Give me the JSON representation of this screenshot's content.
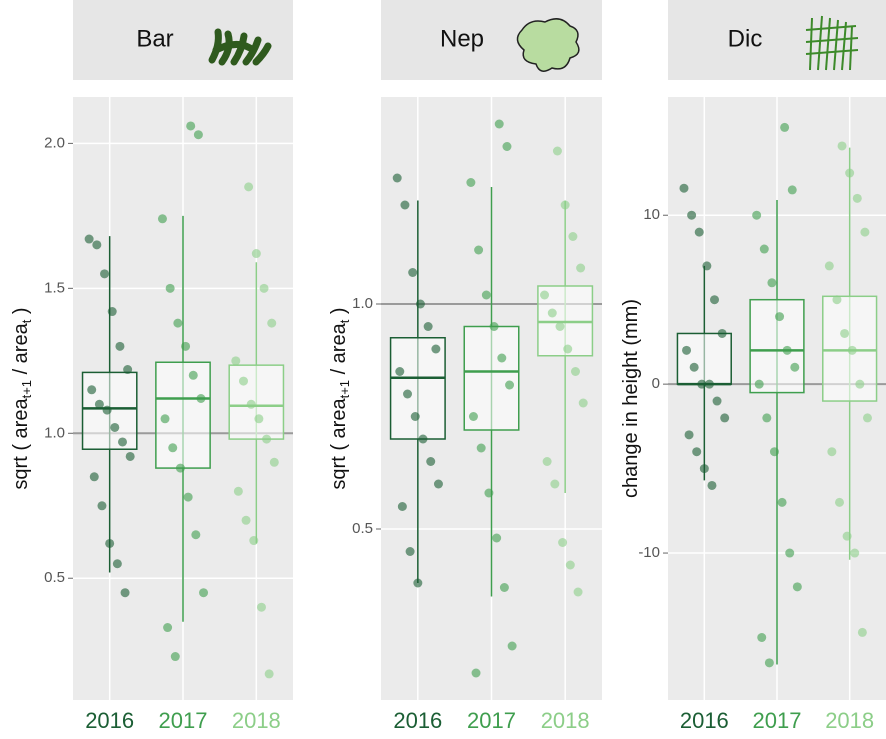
{
  "chart_data": [
    {
      "type": "box",
      "title": "Bar",
      "categories": [
        "2016",
        "2017",
        "2018"
      ],
      "y_label_parts": [
        "sqrt ( area",
        "t+1",
        " / area",
        "t",
        " )"
      ],
      "ylim": [
        0.08,
        2.16
      ],
      "yticks": [
        {
          "value": 0.5,
          "label": "0.5"
        },
        {
          "value": 1,
          "label": "1.0"
        },
        {
          "value": 1.5,
          "label": "1.5"
        },
        {
          "value": 2,
          "label": "2.0"
        }
      ],
      "reference_line": 1,
      "grid": true,
      "boxes": [
        {
          "color": "#1b5e34",
          "min": 0.52,
          "q1": 0.945,
          "median": 1.086,
          "q3": 1.21,
          "max": 1.68,
          "points": [
            1.67,
            1.65,
            1.55,
            1.42,
            1.3,
            1.22,
            1.15,
            1.1,
            1.08,
            1.02,
            0.97,
            0.92,
            0.85,
            0.75,
            0.62,
            0.55,
            0.45
          ]
        },
        {
          "color": "#3f9e4e",
          "min": 0.35,
          "q1": 0.88,
          "median": 1.12,
          "q3": 1.245,
          "max": 1.75,
          "points": [
            2.06,
            2.03,
            1.74,
            1.5,
            1.38,
            1.3,
            1.2,
            1.12,
            1.05,
            0.95,
            0.88,
            0.78,
            0.65,
            0.45,
            0.33,
            0.23
          ]
        },
        {
          "color": "#8cce88",
          "min": 0.62,
          "q1": 0.98,
          "median": 1.095,
          "q3": 1.235,
          "max": 1.59,
          "points": [
            1.85,
            1.62,
            1.5,
            1.38,
            1.25,
            1.18,
            1.1,
            1.05,
            0.98,
            0.9,
            0.8,
            0.7,
            0.63,
            0.4,
            0.17
          ]
        }
      ]
    },
    {
      "type": "box",
      "title": "Nep",
      "categories": [
        "2016",
        "2017",
        "2018"
      ],
      "y_label_parts": [
        "sqrt ( area",
        "t+1",
        " / area",
        "t",
        " )"
      ],
      "ylim": [
        0.12,
        1.46
      ],
      "yticks": [
        {
          "value": 0.5,
          "label": "0.5"
        },
        {
          "value": 1,
          "label": "1.0"
        }
      ],
      "reference_line": 1,
      "grid": true,
      "boxes": [
        {
          "color": "#1b5e34",
          "min": 0.38,
          "q1": 0.7,
          "median": 0.836,
          "q3": 0.925,
          "max": 1.23,
          "points": [
            1.28,
            1.22,
            1.07,
            1.0,
            0.95,
            0.9,
            0.85,
            0.8,
            0.75,
            0.7,
            0.65,
            0.6,
            0.55,
            0.45,
            0.38
          ]
        },
        {
          "color": "#3f9e4e",
          "min": 0.35,
          "q1": 0.72,
          "median": 0.85,
          "q3": 0.95,
          "max": 1.26,
          "points": [
            1.4,
            1.35,
            1.27,
            1.12,
            1.02,
            0.95,
            0.88,
            0.82,
            0.75,
            0.68,
            0.58,
            0.48,
            0.37,
            0.24,
            0.18
          ]
        },
        {
          "color": "#8cce88",
          "min": 0.58,
          "q1": 0.885,
          "median": 0.96,
          "q3": 1.04,
          "max": 1.23,
          "points": [
            1.34,
            1.22,
            1.15,
            1.08,
            1.02,
            0.98,
            0.95,
            0.9,
            0.85,
            0.78,
            0.65,
            0.6,
            0.47,
            0.42,
            0.36
          ]
        }
      ]
    },
    {
      "type": "box",
      "title": "Dic",
      "categories": [
        "2016",
        "2017",
        "2018"
      ],
      "y_label_parts": [
        "change in height (mm)"
      ],
      "ylim": [
        -18.7,
        17
      ],
      "yticks": [
        -10,
        0,
        10
      ],
      "reference_line": 0,
      "grid": true,
      "boxes": [
        {
          "color": "#1b5e34",
          "min": -5.7,
          "q1": 0,
          "median": 0,
          "q3": 3,
          "max": 7,
          "points": [
            11.6,
            10,
            9,
            7,
            5,
            3,
            2,
            1,
            0,
            0,
            -1,
            -2,
            -3,
            -4,
            -5,
            -6
          ]
        },
        {
          "color": "#3f9e4e",
          "min": -16.6,
          "q1": -0.5,
          "median": 2,
          "q3": 5,
          "max": 10.9,
          "points": [
            15.2,
            11.5,
            10,
            8,
            6,
            4,
            2,
            1,
            0,
            -2,
            -4,
            -7,
            -10,
            -12,
            -15,
            -16.5
          ]
        },
        {
          "color": "#8cce88",
          "min": -10.4,
          "q1": -1,
          "median": 2,
          "q3": 5.2,
          "max": 14,
          "points": [
            14.1,
            12.5,
            11,
            9,
            7,
            5,
            3,
            2,
            0,
            -2,
            -4,
            -7,
            -9,
            -10,
            -14.7
          ]
        }
      ]
    }
  ]
}
